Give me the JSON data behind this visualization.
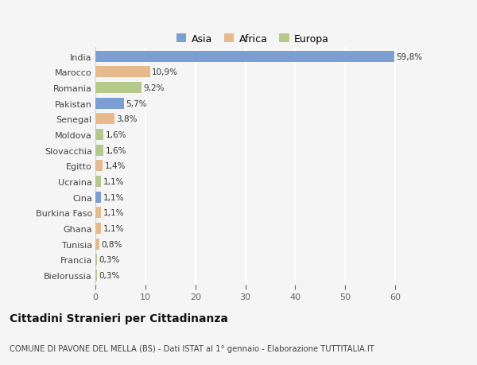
{
  "countries": [
    "India",
    "Marocco",
    "Romania",
    "Pakistan",
    "Senegal",
    "Moldova",
    "Slovacchia",
    "Egitto",
    "Ucraina",
    "Cina",
    "Burkina Faso",
    "Ghana",
    "Tunisia",
    "Francia",
    "Bielorussia"
  ],
  "values": [
    59.8,
    10.9,
    9.2,
    5.7,
    3.8,
    1.6,
    1.6,
    1.4,
    1.1,
    1.1,
    1.1,
    1.1,
    0.8,
    0.3,
    0.3
  ],
  "labels": [
    "59,8%",
    "10,9%",
    "9,2%",
    "5,7%",
    "3,8%",
    "1,6%",
    "1,6%",
    "1,4%",
    "1,1%",
    "1,1%",
    "1,1%",
    "1,1%",
    "0,8%",
    "0,3%",
    "0,3%"
  ],
  "categories": [
    "Asia",
    "Africa",
    "Europa",
    "Asia",
    "Africa",
    "Europa",
    "Europa",
    "Africa",
    "Europa",
    "Asia",
    "Africa",
    "Africa",
    "Africa",
    "Europa",
    "Europa"
  ],
  "colors": {
    "Asia": "#7b9fd4",
    "Africa": "#e8b98a",
    "Europa": "#b5c98a"
  },
  "legend_labels": [
    "Asia",
    "Africa",
    "Europa"
  ],
  "title": "Cittadini Stranieri per Cittadinanza",
  "subtitle": "COMUNE DI PAVONE DEL MELLA (BS) - Dati ISTAT al 1° gennaio - Elaborazione TUTTITALIA.IT",
  "xlim": [
    0,
    63
  ],
  "xticks": [
    0,
    10,
    20,
    30,
    40,
    50,
    60
  ],
  "bg_color": "#f5f5f5",
  "grid_color": "#ffffff",
  "bar_height": 0.72
}
